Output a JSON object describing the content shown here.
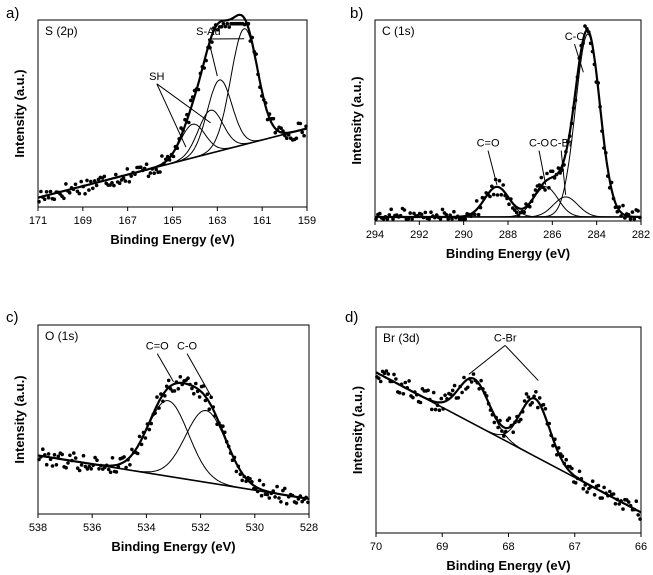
{
  "chart_data": [
    {
      "panel": "a)",
      "type": "scatter",
      "title": "S (2p)",
      "xlabel": "Binding Energy (eV)",
      "ylabel": "Intensity (a.u.)",
      "xlim": [
        171,
        159
      ],
      "xreversed": true,
      "ylim": [
        0,
        1
      ],
      "xticks": [
        "171",
        "169",
        "167",
        "165",
        "163",
        "161",
        "159"
      ],
      "grid": false,
      "background": {
        "x1": 171,
        "y1": 0.05,
        "x2": 159,
        "y2": 0.42
      },
      "peaks": [
        {
          "label": "SH",
          "center": 164.1,
          "height": 0.18,
          "width": 0.55
        },
        {
          "label": "SH",
          "center": 163.3,
          "height": 0.23,
          "width": 0.55
        },
        {
          "label": "S-Au",
          "center": 162.9,
          "height": 0.38,
          "width": 0.55
        },
        {
          "label": "S-Au",
          "center": 161.8,
          "height": 0.62,
          "width": 0.6
        }
      ],
      "annotations": [
        {
          "text": "S-Au",
          "x": 163.4,
          "y": 0.92,
          "targets": [
            [
              163.0,
              0.7
            ],
            [
              161.8,
              0.9
            ]
          ]
        },
        {
          "text": "SH",
          "x": 165.7,
          "y": 0.68,
          "targets": [
            [
              164.4,
              0.32
            ],
            [
              163.3,
              0.45
            ]
          ]
        }
      ]
    },
    {
      "panel": "b)",
      "type": "scatter",
      "title": "C (1s)",
      "xlabel": "Binding Energy (eV)",
      "ylabel": "Intensity (a.u.)",
      "xlim": [
        294,
        282
      ],
      "xreversed": true,
      "ylim": [
        0,
        1
      ],
      "xticks": [
        "294",
        "292",
        "290",
        "288",
        "286",
        "284",
        "282"
      ],
      "grid": false,
      "background": {
        "x1": 294,
        "y1": 0.02,
        "x2": 282,
        "y2": 0.02
      },
      "peaks": [
        {
          "label": "C=O",
          "center": 288.5,
          "height": 0.15,
          "width": 0.55
        },
        {
          "label": "C-O",
          "center": 286.3,
          "height": 0.15,
          "width": 0.55
        },
        {
          "label": "C-Br",
          "center": 285.4,
          "height": 0.1,
          "width": 0.55
        },
        {
          "label": "C-C",
          "center": 284.4,
          "height": 0.91,
          "width": 0.55
        }
      ],
      "annotations": [
        {
          "text": "C=O",
          "x": 288.9,
          "y": 0.37,
          "targets": [
            [
              288.5,
              0.18
            ]
          ]
        },
        {
          "text": "C-O",
          "x": 286.6,
          "y": 0.37,
          "targets": [
            [
              286.3,
              0.18
            ]
          ]
        },
        {
          "text": "C-Br",
          "x": 285.6,
          "y": 0.37,
          "targets": [
            [
              285.4,
              0.13
            ]
          ]
        },
        {
          "text": "C-C",
          "x": 285.0,
          "y": 0.9,
          "targets": [
            [
              284.6,
              0.74
            ]
          ]
        }
      ]
    },
    {
      "panel": "c)",
      "type": "scatter",
      "title": "O (1s)",
      "xlabel": "Binding Energy (eV)",
      "ylabel": "Intensity (a.u.)",
      "xlim": [
        538,
        528
      ],
      "xreversed": true,
      "ylim": [
        0,
        1
      ],
      "xticks": [
        "538",
        "536",
        "534",
        "532",
        "530",
        "528"
      ],
      "grid": false,
      "background": {
        "x1": 538,
        "y1": 0.31,
        "x2": 528,
        "y2": 0.08
      },
      "peaks": [
        {
          "label": "C=O",
          "center": 533.2,
          "height": 0.4,
          "width": 0.75
        },
        {
          "label": "C-O",
          "center": 531.8,
          "height": 0.38,
          "width": 0.75
        }
      ],
      "annotations": [
        {
          "text": "C=O",
          "x": 533.6,
          "y": 0.87,
          "targets": [
            [
              533.0,
              0.7
            ]
          ]
        },
        {
          "text": "C-O",
          "x": 532.5,
          "y": 0.87,
          "targets": [
            [
              531.6,
              0.62
            ]
          ]
        }
      ]
    },
    {
      "panel": "d)",
      "type": "scatter",
      "title": "Br (3d)",
      "xlabel": "Binding Energy (eV)",
      "ylabel": "Intensity (a.u.)",
      "xlim": [
        70,
        66
      ],
      "xreversed": true,
      "ylim": [
        0,
        1
      ],
      "xticks": [
        "70",
        "69",
        "68",
        "67",
        "66"
      ],
      "grid": false,
      "background": {
        "x1": 70,
        "y1": 0.78,
        "x2": 66,
        "y2": 0.1
      },
      "peaks": [
        {
          "label": "C-Br",
          "center": 68.52,
          "height": 0.22,
          "width": 0.23
        },
        {
          "label": "C-Br",
          "center": 67.6,
          "height": 0.28,
          "width": 0.22
        }
      ],
      "annotations": [
        {
          "text": "C-Br",
          "x": 68.05,
          "y": 0.93,
          "targets": [
            [
              68.6,
              0.77
            ],
            [
              67.55,
              0.74
            ]
          ]
        }
      ]
    }
  ]
}
